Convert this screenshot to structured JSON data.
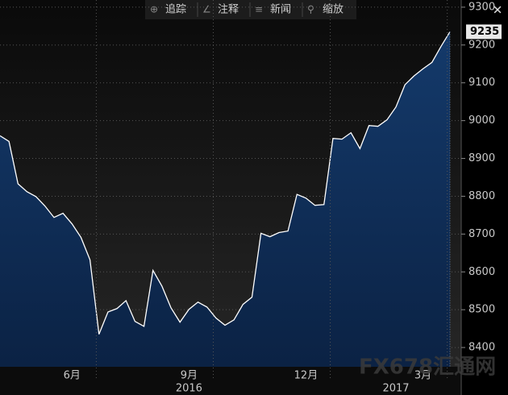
{
  "chart_data": {
    "type": "area",
    "toolbar": [
      "追踪",
      "注释",
      "新闻",
      "缩放"
    ],
    "watermark": "FX678汇通网",
    "categories": [
      null,
      null,
      null,
      null,
      null,
      null,
      null,
      null,
      "6月",
      null,
      null,
      null,
      null,
      null,
      null,
      null,
      null,
      null,
      null,
      null,
      null,
      "9月",
      null,
      null,
      null,
      null,
      null,
      null,
      null,
      null,
      null,
      null,
      null,
      null,
      "12月",
      null,
      null,
      null,
      null,
      null,
      null,
      null,
      null,
      null,
      null,
      null,
      null,
      "3月",
      null,
      null,
      null
    ],
    "year_categories": [
      null,
      null,
      null,
      null,
      null,
      null,
      null,
      null,
      null,
      null,
      null,
      null,
      null,
      null,
      null,
      null,
      null,
      null,
      null,
      null,
      null,
      "2016",
      null,
      null,
      null,
      null,
      null,
      null,
      null,
      null,
      null,
      null,
      null,
      null,
      null,
      null,
      null,
      null,
      null,
      null,
      null,
      null,
      null,
      null,
      "2017",
      null,
      null,
      null,
      null,
      null,
      null
    ],
    "series": [
      {
        "color": "#ffffff",
        "fill": "#0e2b52",
        "values": [
          8960,
          8945,
          8833,
          8812,
          8799,
          8774,
          8744,
          8755,
          8727,
          8691,
          8632,
          8435,
          8494,
          8503,
          8524,
          8469,
          8456,
          8604,
          8562,
          8505,
          8467,
          8501,
          8520,
          8507,
          8478,
          8459,
          8473,
          8514,
          8533,
          8702,
          8693,
          8704,
          8708,
          8805,
          8795,
          8776,
          8778,
          8953,
          8951,
          8968,
          8926,
          8987,
          8985,
          9002,
          9036,
          9095,
          9118,
          9137,
          9154,
          9196,
          9235
        ]
      }
    ],
    "ylim": [
      8349,
      9319
    ],
    "yticks": [
      8400,
      8500,
      8600,
      8700,
      8800,
      8900,
      9000,
      9100,
      9200,
      9300
    ],
    "grid": true
  }
}
